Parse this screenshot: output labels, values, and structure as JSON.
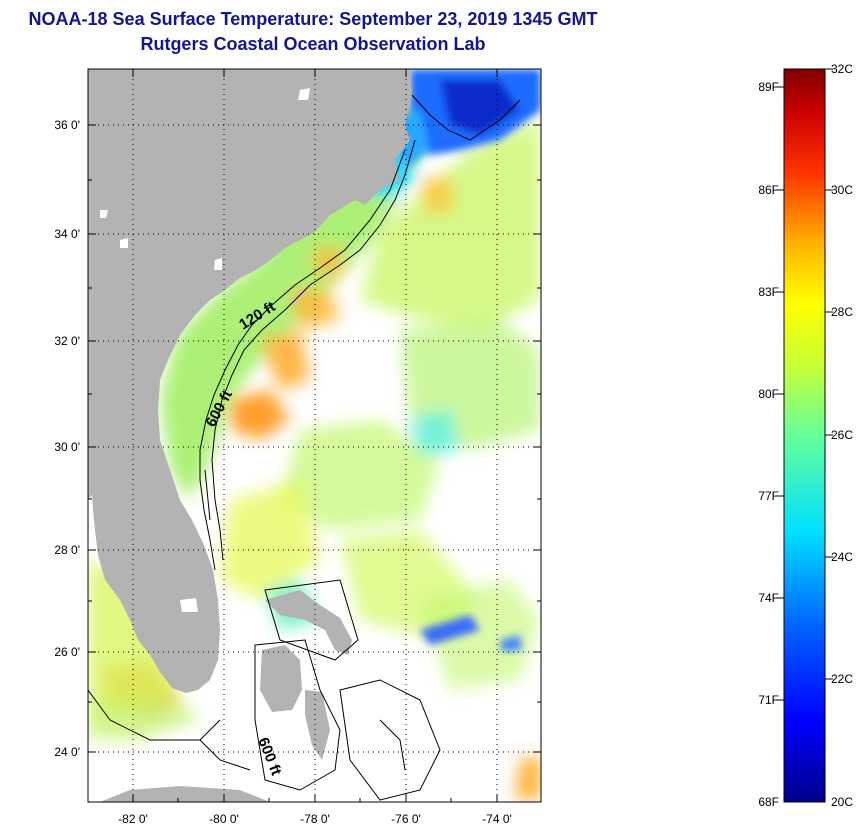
{
  "header": {
    "title": "NOAA-18 Sea Surface Temperature:  September 23, 2019 1345 GMT",
    "subtitle": "Rutgers Coastal Ocean Observation Lab"
  },
  "map": {
    "lat_ticks": [
      "36 0'",
      "34 0'",
      "32 0'",
      "30 0'",
      "28 0'",
      "26 0'",
      "24 0'"
    ],
    "lon_ticks": [
      "-82 0'",
      "-80 0'",
      "-78 0'",
      "-76 0'",
      "-74 0'"
    ],
    "contour_labels": [
      "120 ft",
      "600 ft",
      "600 ft"
    ]
  },
  "colorbar": {
    "fahrenheit": [
      "89F",
      "86F",
      "83F",
      "80F",
      "77F",
      "74F",
      "71F",
      "68F"
    ],
    "celsius": [
      "32C",
      "30C",
      "28C",
      "26C",
      "24C",
      "22C",
      "20C"
    ]
  },
  "colors": {
    "title": "#12178f",
    "land": "#b3b3b3",
    "cloud": "#ffffff"
  }
}
